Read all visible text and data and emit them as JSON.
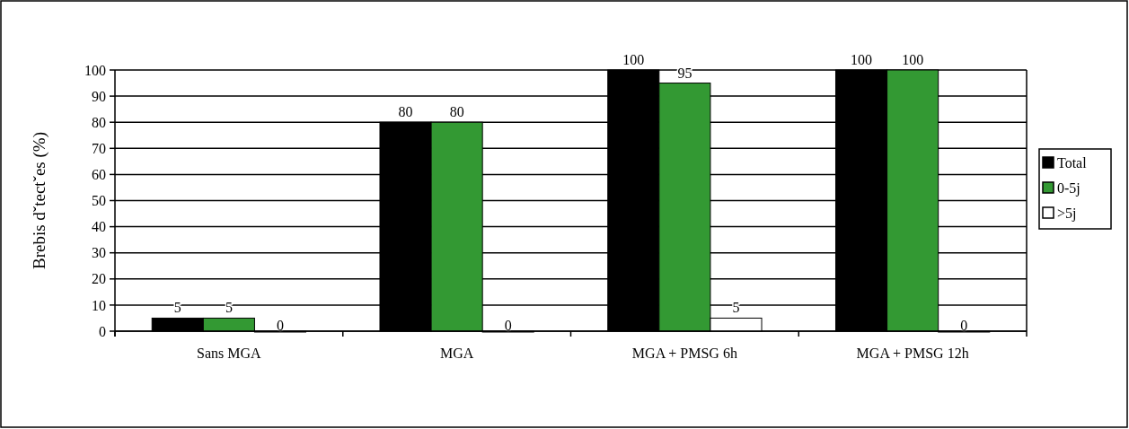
{
  "chart_data": {
    "type": "bar",
    "ylabel": "Brebis dˇtectˇes (%)",
    "categories": [
      "Sans MGA",
      "MGA",
      "MGA + PMSG 6h",
      "MGA + PMSG 12h"
    ],
    "series": [
      {
        "name": "Total",
        "color": "#000000",
        "values": [
          5,
          80,
          100,
          100
        ]
      },
      {
        "name": "0-5j",
        "color": "#339933",
        "values": [
          5,
          80,
          95,
          100
        ]
      },
      {
        "name": ">5j",
        "color": "#ffffff",
        "values": [
          0,
          0,
          5,
          0
        ]
      }
    ],
    "ylim": [
      0,
      100
    ],
    "yticks": [
      0,
      10,
      20,
      30,
      40,
      50,
      60,
      70,
      80,
      90,
      100
    ],
    "grid": "y",
    "legend": "right",
    "data_labels": true
  }
}
